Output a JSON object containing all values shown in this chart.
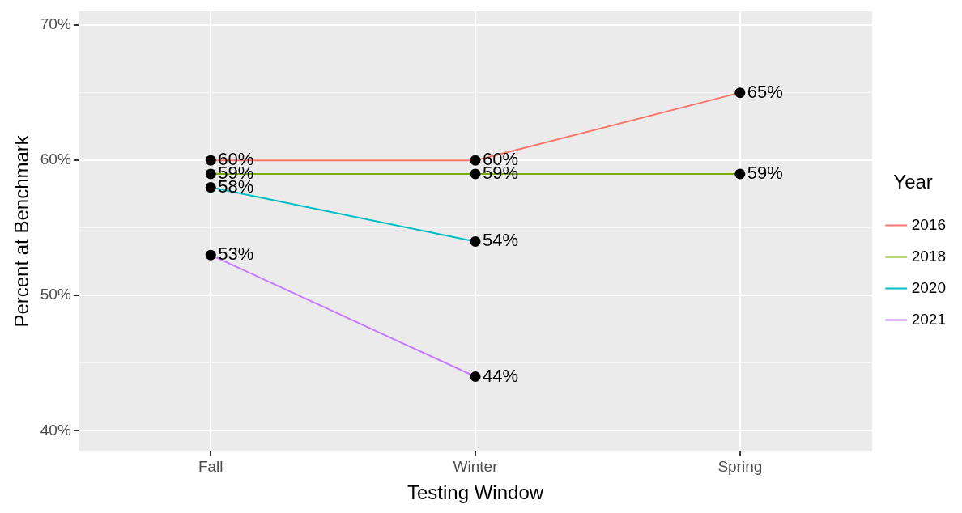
{
  "chart_data": {
    "type": "line",
    "xlabel": "Testing Window",
    "ylabel": "Percent at Benchmark",
    "legend_title": "Year",
    "categories": [
      "Fall",
      "Winter",
      "Spring"
    ],
    "series": [
      {
        "name": "2016",
        "color": "#f8766d",
        "values": [
          60,
          60,
          65
        ],
        "value_labels": [
          "60%",
          "60%",
          "65%"
        ]
      },
      {
        "name": "2018",
        "color": "#7cae00",
        "values": [
          59,
          59,
          59
        ],
        "value_labels": [
          "59%",
          "59%",
          "59%"
        ]
      },
      {
        "name": "2020",
        "color": "#00bfc4",
        "values": [
          58,
          54,
          null
        ],
        "value_labels": [
          "58%",
          "54%",
          null
        ]
      },
      {
        "name": "2021",
        "color": "#c77cff",
        "values": [
          53,
          44,
          null
        ],
        "value_labels": [
          "53%",
          "44%",
          null
        ]
      }
    ],
    "ylim": [
      38.5,
      71
    ],
    "yticks": [
      {
        "value": 40,
        "label": "40%"
      },
      {
        "value": 45,
        "label": null
      },
      {
        "value": 50,
        "label": "50%"
      },
      {
        "value": 55,
        "label": null
      },
      {
        "value": 60,
        "label": "60%"
      },
      {
        "value": 65,
        "label": null
      },
      {
        "value": 70,
        "label": "70%"
      }
    ],
    "grid": true,
    "legend": "right",
    "marker": "circle",
    "line_style": "solid"
  }
}
